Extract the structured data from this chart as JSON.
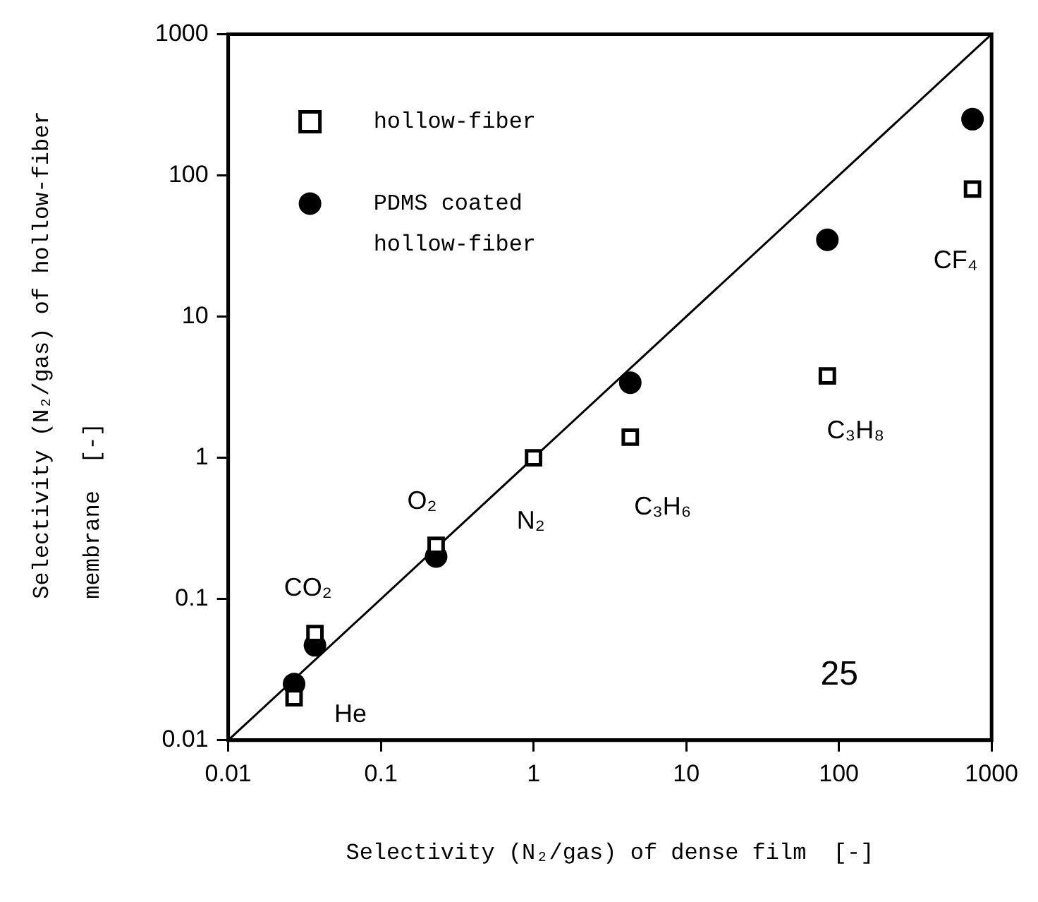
{
  "chart_data": {
    "type": "scatter",
    "xlabel": "Selectivity (N₂/gas) of dense film  [-]",
    "ylabel": "Selectivity (N₂/gas) of hollow-fiber membrane  [-]",
    "log": "xy",
    "xlim": [
      0.01,
      1000
    ],
    "ylim": [
      0.01,
      1000
    ],
    "xticks": [
      0.01,
      0.1,
      1,
      10,
      100,
      1000
    ],
    "yticks": [
      0.01,
      0.1,
      1,
      10,
      100,
      1000
    ],
    "grid": false,
    "legend": "top left",
    "series": [
      {
        "name": "hollow-fiber",
        "color": "#000000",
        "marker": "square",
        "x": [
          0.027,
          0.037,
          0.23,
          1,
          4.3,
          84,
          750
        ],
        "values": [
          0.02,
          0.057,
          0.24,
          1,
          1.4,
          3.8,
          80
        ]
      },
      {
        "name": "PDMS coated hollow-fiber",
        "color": "#000000",
        "marker": "circle",
        "x": [
          0.027,
          0.037,
          0.23,
          4.3,
          84,
          750
        ],
        "values": [
          0.025,
          0.047,
          0.2,
          3.4,
          35,
          250
        ]
      },
      {
        "type": "line",
        "color": "#000000",
        "marker": "none",
        "x": [
          0.01,
          1000
        ],
        "values": [
          0.01,
          1000
        ]
      }
    ],
    "annotations": [
      {
        "text": "He",
        "x": 0.027,
        "y": 0.02
      },
      {
        "text": "CO₂",
        "x": 0.037,
        "y": 0.057
      },
      {
        "text": "O₂",
        "x": 0.23,
        "y": 0.24
      },
      {
        "text": "N₂",
        "x": 1,
        "y": 1
      },
      {
        "text": "C₃H₆",
        "x": 4.3,
        "y": 1.4
      },
      {
        "text": "C₃H₈",
        "x": 84,
        "y": 3.8
      },
      {
        "text": "CF₄",
        "x": 750,
        "y": 80
      },
      "25"
    ]
  }
}
